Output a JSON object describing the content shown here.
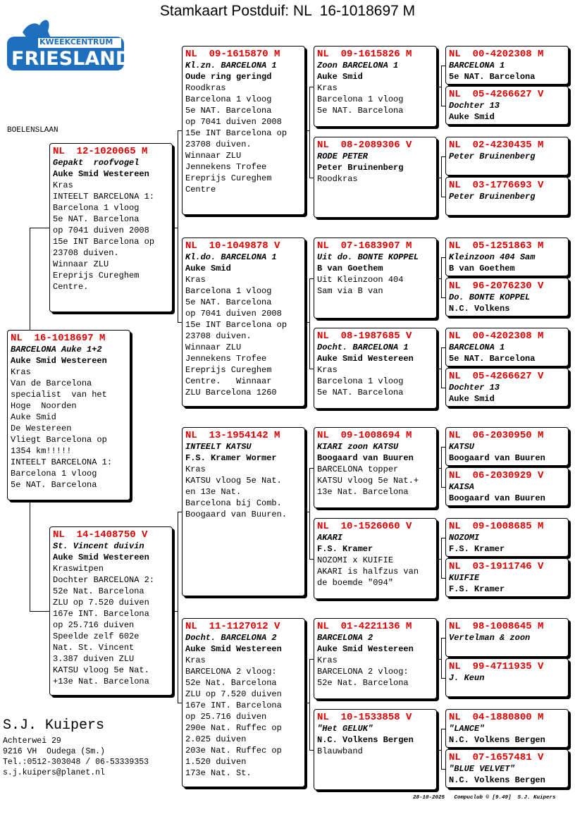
{
  "header": {
    "title": "Stamkaart Postduif: NL  16-1018697 M"
  },
  "logo": {
    "top": "KWEEKCENTRUM",
    "main": "FRIESLAND"
  },
  "location": "BOELENSLAAN",
  "nodes": [
    {
      "ring": "NL  16-1018697 M",
      "name": "BARCELONA Auke 1+2",
      "owner": "Auke Smid Westereen",
      "details": [
        "Kras",
        "Van de Barcelona",
        "specialist  van het",
        "Hoge  Noorden",
        "Auke Smid",
        "De Westereen",
        "Vliegt Barcelona op",
        "1354 km!!!!!",
        "INTEELT BARCELONA 1:",
        "Barcelona 1 vloog",
        "5e NAT. Barcelona"
      ]
    },
    {
      "ring": "NL  12-1020065 M",
      "name": "Gepakt  roofvogel",
      "owner": "Auke Smid Westereen",
      "details": [
        "Kras",
        "INTEELT BARCELONA 1:",
        "Barcelona 1 vloog",
        "5e NAT. Barcelona",
        "op 7041 duiven 2008",
        "15e INT Barcelona op",
        "23708 duiven.",
        "Winnaar ZLU",
        "Ereprijs Cureghem",
        "Centre."
      ]
    },
    {
      "ring": "NL  14-1408750 V",
      "name": "St. Vincent duivin",
      "owner": "Auke Smid Westereen",
      "details": [
        "Kraswitpen",
        "Dochter BARCELONA 2:",
        "52e Nat. Barcelona",
        "ZLU op 7.520 duiven",
        "167e INT. Barcelona",
        "op 25.716 duiven",
        "Speelde zelf 602e",
        "Nat. St. Vincent",
        "3.387 duiven ZLU",
        "KATSU vloog 5e Nat.",
        "+13e Nat. Barcelona"
      ]
    },
    {
      "ring": "NL  09-1615870 M",
      "name": "Kl.zn. BARCELONA 1",
      "owner": "Oude ring geringd",
      "details": [
        "Roodkras",
        "Barcelona 1 vloog",
        "5e NAT. Barcelona",
        "op 7041 duiven 2008",
        "15e INT Barcelona op",
        "23708 duiven.",
        "Winnaar ZLU",
        "Jennekens Trofee",
        "Ereprijs Cureghem",
        "Centre"
      ]
    },
    {
      "ring": "NL  10-1049878 V",
      "name": "Kl.do. BARCELONA 1",
      "owner": "Auke Smid",
      "details": [
        "Kras",
        "Barcelona 1 vloog",
        "5e NAT. Barcelona",
        "op 7041 duiven 2008",
        "15e INT Barcelona op",
        "23708 duiven.",
        "Winnaar ZLU",
        "Jennekens Trofee",
        "Ereprijs Cureghem",
        "Centre.   Winnaar",
        "ZLU Barcelona 1260"
      ]
    },
    {
      "ring": "NL  13-1954142 M",
      "name": "INTEELT KATSU",
      "owner": "F.S. Kramer Wormer",
      "details": [
        "Kras",
        "KATSU vloog 5e Nat.",
        "en 13e Nat.",
        "Barcelona bij Comb.",
        "Boogaard van Buuren."
      ]
    },
    {
      "ring": "NL  11-1127012 V",
      "name": "Docht. BARCELONA 2",
      "owner": "Auke Smid Westereen",
      "details": [
        "Kras",
        "BARCELONA 2 vloog:",
        "52e Nat. Barcelona",
        "ZLU op 7.520 duiven",
        "167e INT. Barcelona",
        "op 25.716 duiven",
        "290e Nat. Ruffec op",
        "2.025 duiven",
        "203e Nat. Ruffec op",
        "1.520 duiven",
        "173e Nat. St."
      ]
    },
    {
      "ring": "NL  09-1615826 M",
      "name": "Zoon BARCELONA 1",
      "owner": "Auke Smid",
      "details": [
        "Kras",
        "Barcelona 1 vloog",
        "5e NAT. Barcelona"
      ]
    },
    {
      "ring": "NL  08-2089306 V",
      "name": "RODE PETER",
      "owner": "Peter Bruinenberg",
      "details": [
        "Roodkras"
      ]
    },
    {
      "ring": "NL  07-1683907 M",
      "name": "Uit do. BONTE KOPPEL",
      "owner": "B van Goethem",
      "details": [
        "Uit Kleinzoon 404",
        "Sam via B van"
      ]
    },
    {
      "ring": "NL  08-1987685 V",
      "name": "Docht. BARCELONA 1",
      "owner": "Auke Smid Westereen",
      "details": [
        "Kras",
        "Barcelona 1 vloog",
        "5e NAT. Barcelona"
      ]
    },
    {
      "ring": "NL  09-1008694 M",
      "name": "KIARI zoon KATSU",
      "owner": "Boogaard van Buuren",
      "details": [
        "BARCELONA topper",
        "KATSU vloog 5e Nat.+",
        "13e Nat. Barcelona"
      ]
    },
    {
      "ring": "NL  10-1526060 V",
      "name": "AKARI",
      "owner": "F.S. Kramer",
      "details": [
        "NOZOMI x KUIFIE",
        "AKARI is halfzus van",
        "de boemde \"094\""
      ]
    },
    {
      "ring": "NL  01-4221136 M",
      "name": "BARCELONA 2",
      "owner": "Auke Smid Westereen",
      "details": [
        "Kras",
        "BARCELONA 2 vloog:",
        "52e Nat. Barcelona"
      ]
    },
    {
      "ring": "NL  10-1533858 V",
      "name": "\"Het GELUK\"",
      "owner": "N.C. Volkens Bergen",
      "details": [
        "Blauwband"
      ]
    },
    {
      "ring": "NL  00-4202308 M",
      "name": "BARCELONA 1",
      "owner": "5e NAT. Barcelona"
    },
    {
      "ring": "NL  05-4266627 V",
      "name": "Dochter 13",
      "owner": "Auke Smid"
    },
    {
      "ring": "NL  02-4230435 M",
      "name": "Peter Bruinenberg"
    },
    {
      "ring": "NL  03-1776693 V",
      "name": "Peter Bruinenberg"
    },
    {
      "ring": "NL  05-1251863 M",
      "name": "Kleinzoon 404 Sam",
      "owner": "B van Goethem"
    },
    {
      "ring": "NL  96-2076230 V",
      "name": "Do. BONTE KOPPEL",
      "owner": "N.C. Volkens"
    },
    {
      "ring": "NL  00-4202308 M",
      "name": "BARCELONA 1",
      "owner": "5e NAT. Barcelona"
    },
    {
      "ring": "NL  05-4266627 V",
      "name": "Dochter 13",
      "owner": "Auke Smid"
    },
    {
      "ring": "NL  06-2030950 M",
      "name": "KATSU",
      "owner": "Boogaard van Buuren"
    },
    {
      "ring": "NL  06-2030929 V",
      "name": "KAISA",
      "owner": "Boogaard van Buuren"
    },
    {
      "ring": "NL  09-1008685 M",
      "name": "NOZOMI",
      "owner": "F.S. Kramer"
    },
    {
      "ring": "NL  03-1911746 V",
      "name": "KUIFIE",
      "owner": "F.S. Kramer"
    },
    {
      "ring": "NL  98-1008645 M",
      "name": "Vertelman & zoon"
    },
    {
      "ring": "NL  99-4711935 V",
      "name": "J. Keun"
    },
    {
      "ring": "NL  04-1880800 M",
      "name": "\"LANCE\"",
      "owner": "N.C. Volkens Bergen"
    },
    {
      "ring": "NL  07-1657481 V",
      "name": "\"BLUE VELVET\"",
      "owner": "N.C. Volkens Bergen"
    }
  ],
  "breeder": {
    "name": "S.J. Kuipers",
    "lines": [
      "Achterwei 29",
      "9216 VH  Oudega (Sm.)",
      "Tel.:0512-303048 / 06-53339353",
      "s.j.kuipers@planet.nl"
    ]
  },
  "footer": "28-10-2025   Compuclub © [9.49]  S.J. Kuipers"
}
